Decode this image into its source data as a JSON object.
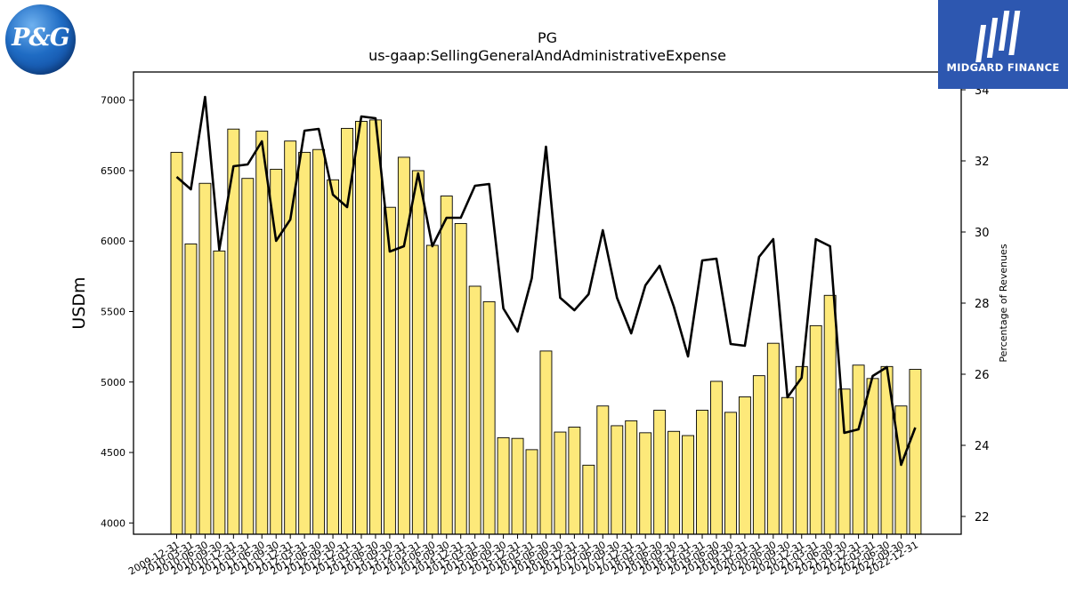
{
  "logos": {
    "left_text": "P&G",
    "right_text": "MIDGARD FINANCE"
  },
  "chart_data": {
    "type": "bar",
    "title": "PG",
    "subtitle": "us-gaap:SellingGeneralAndAdministrativeExpense",
    "ylabel": "USDm",
    "y2label": "Percentage of Revenues",
    "ylim": [
      3920,
      7200
    ],
    "y2lim": [
      21.5,
      34.5
    ],
    "yticks": [
      4000,
      4500,
      5000,
      5500,
      6000,
      6500,
      7000
    ],
    "y2ticks": [
      22,
      24,
      26,
      28,
      30,
      32,
      34
    ],
    "bar_color": "#fde97a",
    "line_color": "#000000",
    "categories": [
      "2009-12-31",
      "2010-03-31",
      "2010-06-30",
      "2010-09-30",
      "2010-12-31",
      "2011-03-31",
      "2011-06-30",
      "2011-09-30",
      "2011-12-31",
      "2012-03-31",
      "2012-06-30",
      "2012-09-30",
      "2012-12-31",
      "2013-03-31",
      "2013-06-30",
      "2013-09-30",
      "2013-12-31",
      "2014-03-31",
      "2014-06-30",
      "2014-09-30",
      "2014-12-31",
      "2015-03-31",
      "2015-06-30",
      "2015-09-30",
      "2015-12-31",
      "2016-03-31",
      "2016-06-30",
      "2016-09-30",
      "2016-12-31",
      "2017-03-31",
      "2017-06-30",
      "2017-09-30",
      "2017-12-31",
      "2018-03-31",
      "2018-06-30",
      "2018-09-30",
      "2018-12-31",
      "2019-03-31",
      "2019-06-30",
      "2019-09-30",
      "2019-12-31",
      "2020-03-31",
      "2020-06-30",
      "2020-09-30",
      "2020-12-31",
      "2021-03-31",
      "2021-06-30",
      "2021-09-30",
      "2021-12-31",
      "2022-03-31",
      "2022-06-30",
      "2022-09-30",
      "2022-12-31"
    ],
    "series": [
      {
        "type": "bar",
        "values": [
          6630,
          5980,
          6410,
          5930,
          6795,
          6445,
          6780,
          6510,
          6710,
          6630,
          6650,
          6435,
          6800,
          6850,
          6860,
          6240,
          6595,
          6500,
          5970,
          6320,
          6125,
          5680,
          5570,
          4605,
          4600,
          4520,
          5220,
          4645,
          4680,
          4410,
          4830,
          4690,
          4725,
          4640,
          4800,
          4650,
          4620,
          4800,
          5005,
          4785,
          4895,
          5045,
          5275,
          4890,
          5110,
          5400,
          5615,
          4950,
          5120,
          5025,
          5110,
          4830,
          5090
        ]
      },
      {
        "type": "line",
        "values": [
          31.55,
          31.2,
          33.8,
          29.5,
          31.85,
          31.9,
          32.55,
          29.75,
          30.35,
          32.85,
          32.9,
          31.05,
          30.7,
          33.25,
          33.2,
          29.45,
          29.6,
          31.65,
          29.6,
          30.4,
          30.4,
          31.3,
          31.35,
          27.85,
          27.2,
          28.7,
          32.4,
          28.15,
          27.8,
          28.25,
          30.05,
          28.15,
          27.15,
          28.5,
          29.05,
          27.9,
          26.5,
          29.2,
          29.25,
          26.85,
          26.8,
          29.3,
          29.8,
          25.35,
          25.9,
          29.8,
          29.6,
          24.35,
          24.45,
          25.95,
          26.2,
          23.45,
          24.5
        ]
      }
    ]
  }
}
